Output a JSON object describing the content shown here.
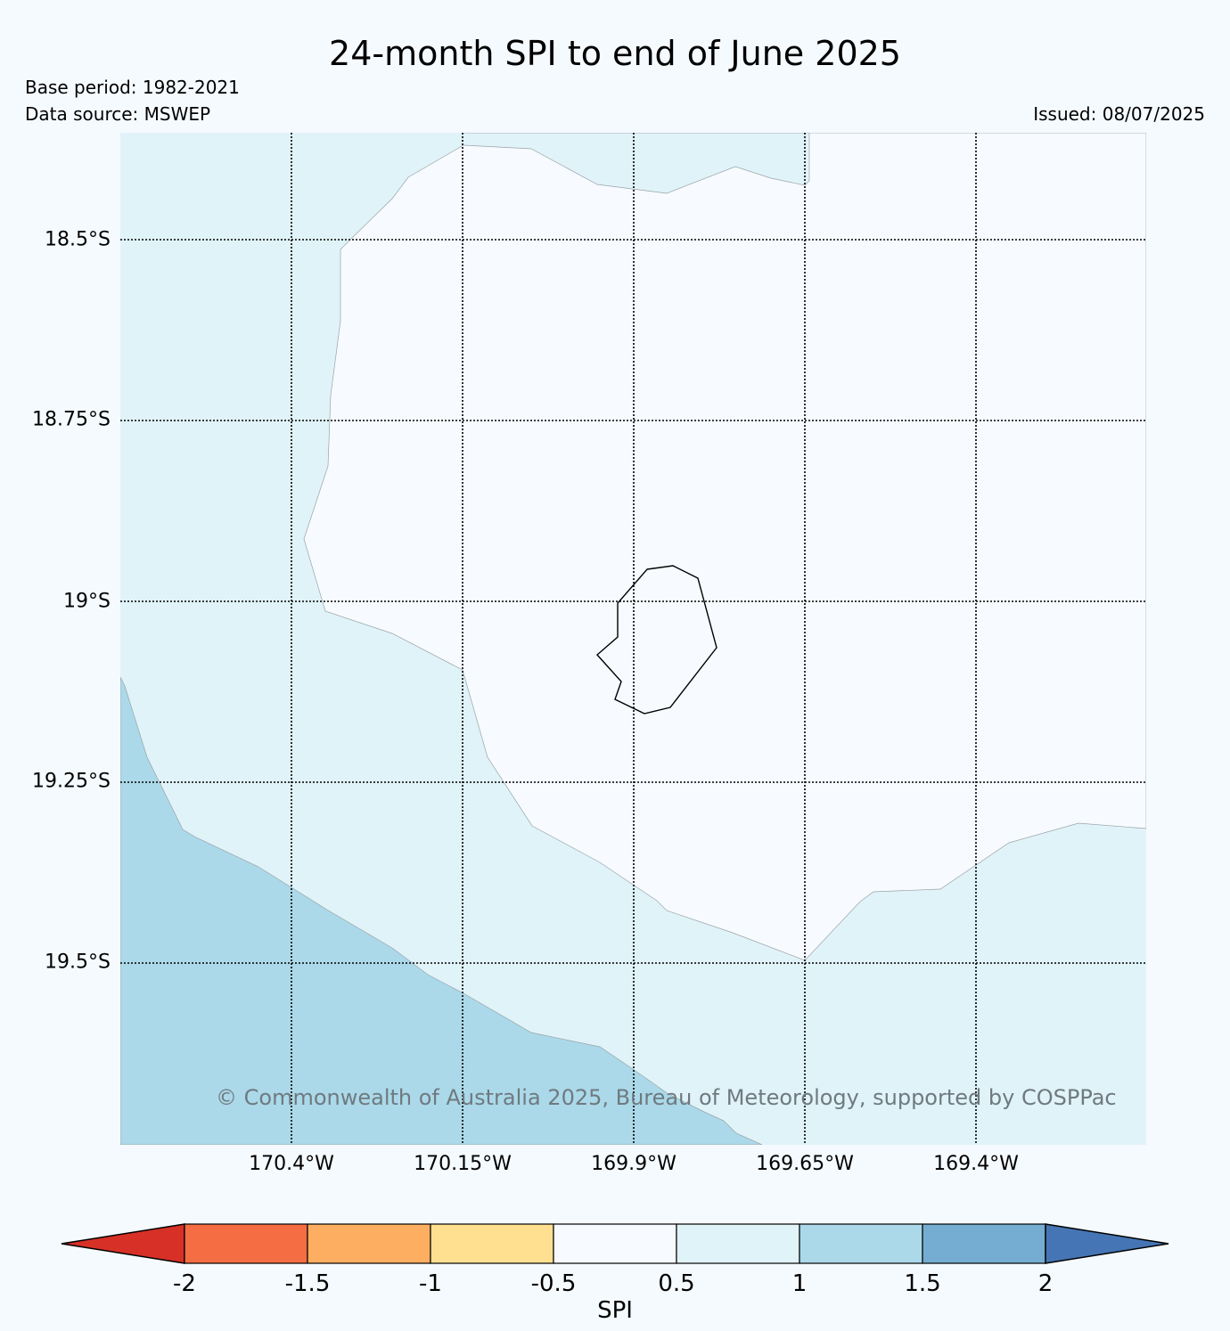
{
  "title": "24-month SPI to end of June 2025",
  "meta": {
    "base_period": "Base period: 1982-2021",
    "data_source": "Data source: MSWEP",
    "issued": "Issued: 08/07/2025"
  },
  "copyright": "© Commonwealth of Australia 2025, Bureau of Meteorology, supported by COSPPac",
  "map": {
    "lat_ticks": [
      "18.5°S",
      "18.75°S",
      "19°S",
      "19.25°S",
      "19.5°S"
    ],
    "lon_ticks": [
      "170.4°W",
      "170.15°W",
      "169.9°W",
      "169.65°W",
      "169.4°W"
    ],
    "colors": {
      "band_0_5_to_1": "#e0f3f8",
      "band_1_to_1_5": "#abd9e9",
      "band_neutral": "#f7fbff"
    }
  },
  "colorbar": {
    "label": "SPI",
    "ticks": [
      "-2",
      "-1.5",
      "-1",
      "-0.5",
      "0.5",
      "1",
      "1.5",
      "2"
    ],
    "colors": [
      "#d73027",
      "#f46d43",
      "#fdae61",
      "#fee090",
      "#f7fbff",
      "#e0f3f8",
      "#abd9e9",
      "#74add1",
      "#4575b4"
    ]
  }
}
